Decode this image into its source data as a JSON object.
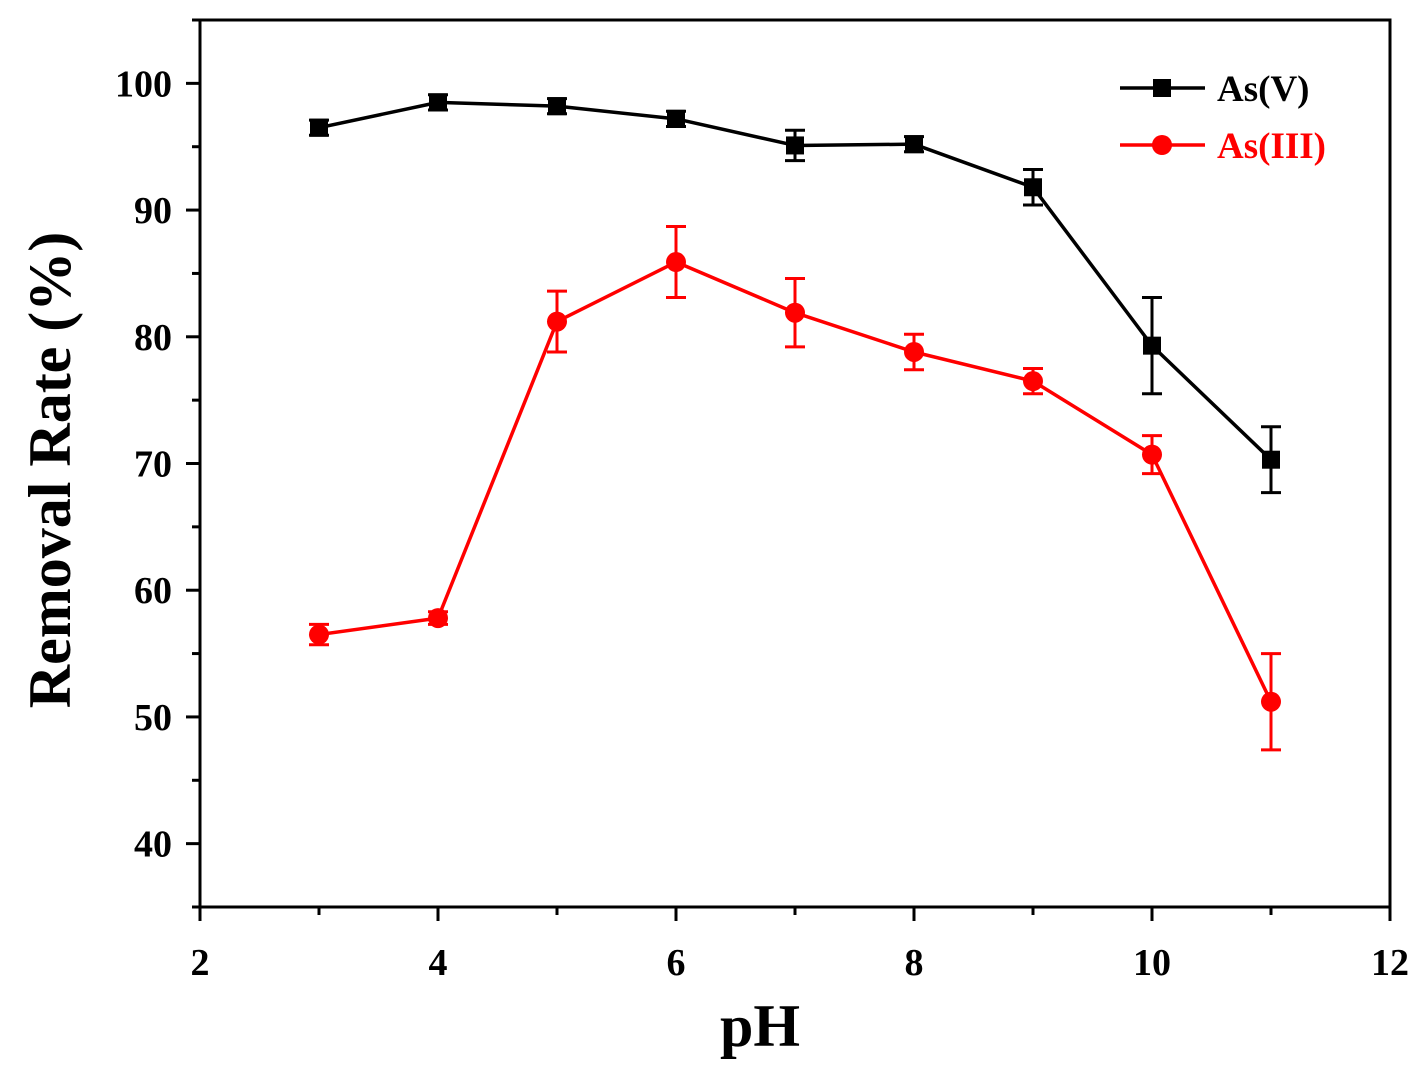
{
  "chart_data": {
    "type": "line",
    "title": "",
    "xlabel": "pH",
    "ylabel": "Removal Rate (%)",
    "xlim": [
      2,
      12
    ],
    "ylim": [
      35,
      105
    ],
    "xticks": [
      2,
      4,
      6,
      8,
      10,
      12
    ],
    "yticks": [
      40,
      50,
      60,
      70,
      80,
      90,
      100
    ],
    "grid": false,
    "legend_position": "top-right",
    "series": [
      {
        "name": "As(V)",
        "color": "#000000",
        "marker": "square",
        "x": [
          3,
          4,
          5,
          6,
          7,
          8,
          9,
          10,
          11
        ],
        "y": [
          96.5,
          98.5,
          98.2,
          97.2,
          95.1,
          95.2,
          91.8,
          79.3,
          70.3
        ],
        "err": [
          0.6,
          0.6,
          0.6,
          0.6,
          1.2,
          0.6,
          1.4,
          3.8,
          2.6
        ]
      },
      {
        "name": "As(III)",
        "color": "#ff0000",
        "marker": "circle",
        "x": [
          3,
          4,
          5,
          6,
          7,
          8,
          9,
          10,
          11
        ],
        "y": [
          56.5,
          57.8,
          81.2,
          85.9,
          81.9,
          78.8,
          76.5,
          70.7,
          51.2
        ],
        "err": [
          0.8,
          0.5,
          2.4,
          2.8,
          2.7,
          1.4,
          1.0,
          1.5,
          3.8
        ]
      }
    ]
  }
}
